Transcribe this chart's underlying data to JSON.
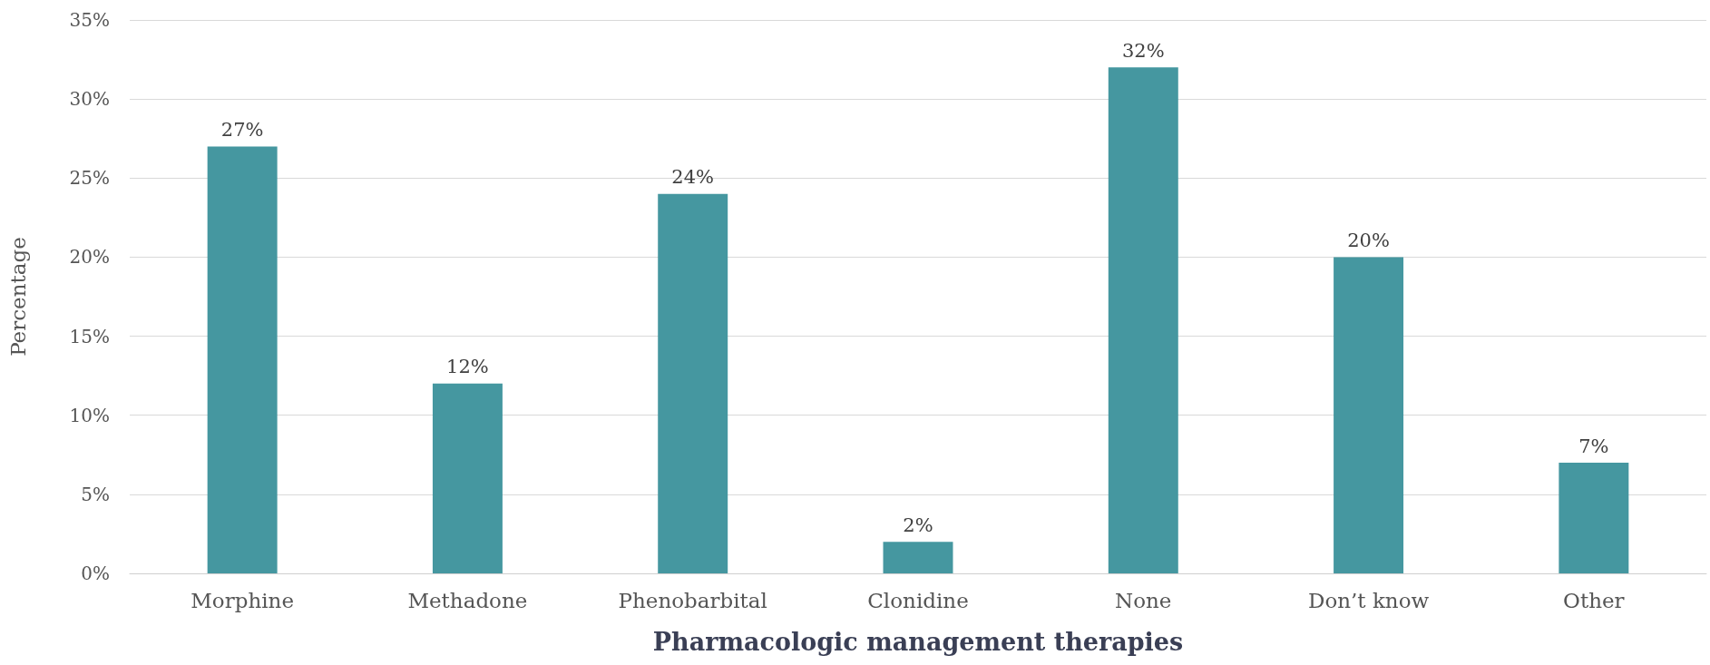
{
  "chart_data": {
    "type": "bar",
    "xlabel": "Pharmacologic management therapies",
    "ylabel": "Percentage",
    "categories": [
      "Morphine",
      "Methadone",
      "Phenobarbital",
      "Clonidine",
      "None",
      "Don’t know",
      "Other"
    ],
    "values": [
      27,
      12,
      24,
      2,
      32,
      20,
      7
    ],
    "value_labels": [
      "27%",
      "12%",
      "24%",
      "2%",
      "32%",
      "20%",
      "7%"
    ],
    "color": "#4597a0",
    "ylim": [
      0,
      35
    ],
    "yticks": [
      {
        "value": 0,
        "label": "0%"
      },
      {
        "value": 5,
        "label": "5%"
      },
      {
        "value": 10,
        "label": "10%"
      },
      {
        "value": 15,
        "label": "15%"
      },
      {
        "value": 20,
        "label": "20%"
      },
      {
        "value": 25,
        "label": "25%"
      },
      {
        "value": 30,
        "label": "30%"
      },
      {
        "value": 35,
        "label": "35%"
      }
    ],
    "grid": "y"
  }
}
